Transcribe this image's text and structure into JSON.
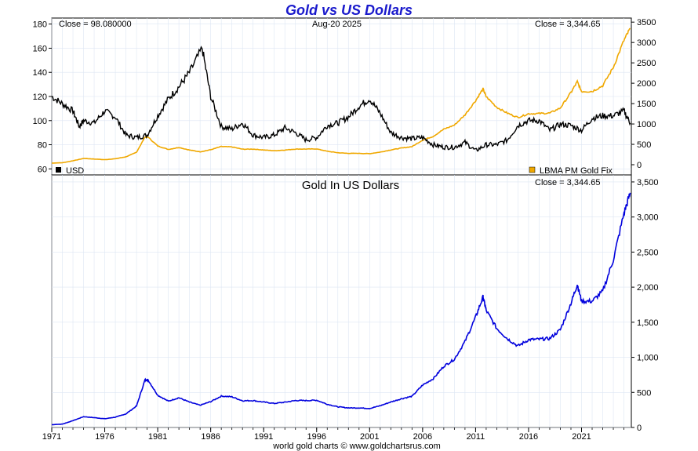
{
  "chart_data": [
    {
      "type": "line",
      "title": "Gold vs US Dollars",
      "date": "Aug-20  2025",
      "left_close": "Close = 98.080000",
      "right_close": "Close = 3,344.65",
      "legend_left": "USD",
      "legend_right": "LBMA PM Gold Fix",
      "colors": {
        "usd": "#000000",
        "gold": "#f0a800"
      },
      "left_axis": {
        "min": 55,
        "max": 185,
        "ticks": [
          "60",
          "80",
          "100",
          "120",
          "140",
          "160",
          "180"
        ]
      },
      "right_axis": {
        "min": -250,
        "max": 3600,
        "ticks": [
          "0",
          "500",
          "1000",
          "1500",
          "2000",
          "2500",
          "3000",
          "3500"
        ]
      },
      "x_range": [
        1971,
        2025.7
      ],
      "series": [
        {
          "name": "USD",
          "x": [
            1971,
            1972,
            1973,
            1973.6,
            1974,
            1975,
            1976,
            1977,
            1978,
            1979,
            1980,
            1981,
            1982,
            1983,
            1984,
            1985.2,
            1986,
            1987,
            1988,
            1989,
            1990,
            1991,
            1992,
            1993,
            1994,
            1995,
            1996,
            1997,
            1998,
            1999,
            2000,
            2001,
            2002,
            2003,
            2004,
            2005,
            2006,
            2007,
            2008,
            2009,
            2010,
            2011,
            2012,
            2013,
            2014,
            2015,
            2016,
            2017,
            2018,
            2019,
            2020,
            2021,
            2022,
            2023,
            2024,
            2025,
            2025.6
          ],
          "y": [
            120,
            114,
            108,
            95,
            100,
            98,
            108,
            103,
            88,
            86,
            88,
            104,
            118,
            128,
            140,
            160,
            120,
            95,
            93,
            98,
            88,
            86,
            88,
            94,
            90,
            84,
            86,
            96,
            98,
            103,
            112,
            118,
            106,
            90,
            86,
            85,
            86,
            80,
            78,
            78,
            82,
            75,
            80,
            80,
            84,
            96,
            100,
            100,
            92,
            97,
            96,
            92,
            102,
            104,
            104,
            108,
            98
          ]
        },
        {
          "name": "LBMA PM Gold Fix",
          "x": [
            1971,
            1972,
            1973,
            1974,
            1975,
            1976,
            1977,
            1978,
            1979,
            1979.8,
            1980.1,
            1981,
            1982,
            1983,
            1984,
            1985,
            1986,
            1987,
            1988,
            1989,
            1990,
            1991,
            1992,
            1993,
            1994,
            1995,
            1996,
            1997,
            1998,
            1999,
            2000,
            2001,
            2002,
            2003,
            2004,
            2005,
            2006,
            2007,
            2008,
            2009,
            2010,
            2011,
            2011.7,
            2012,
            2013,
            2014,
            2015,
            2016,
            2017,
            2018,
            2019,
            2020,
            2020.6,
            2021,
            2022,
            2023,
            2024,
            2025,
            2025.6
          ],
          "y": [
            40,
            48,
            97,
            154,
            140,
            124,
            147,
            193,
            306,
            680,
            675,
            460,
            375,
            424,
            361,
            317,
            368,
            447,
            437,
            381,
            383,
            362,
            343,
            360,
            384,
            384,
            388,
            331,
            294,
            279,
            279,
            271,
            310,
            363,
            409,
            444,
            604,
            695,
            872,
            972,
            1225,
            1572,
            1860,
            1669,
            1411,
            1266,
            1160,
            1251,
            1257,
            1268,
            1393,
            1770,
            2040,
            1800,
            1800,
            1940,
            2390,
            3050,
            3345
          ]
        }
      ]
    },
    {
      "type": "line",
      "title": "Gold In US Dollars",
      "right_close": "Close = 3,344.65",
      "color": "#0000dd",
      "y_axis": {
        "min": 0,
        "max": 3600,
        "ticks": [
          "0",
          "500",
          "1,000",
          "1,500",
          "2,000",
          "2,500",
          "3,000",
          "3,500"
        ]
      },
      "x_ticks": [
        "1971",
        "1976",
        "1981",
        "1986",
        "1991",
        "1996",
        "2001",
        "2006",
        "2011",
        "2016",
        "2021"
      ],
      "footer": "world gold charts © www.goldchartsrus.com",
      "series": [
        {
          "name": "Gold",
          "x": [
            1971,
            1972,
            1973,
            1974,
            1975,
            1976,
            1977,
            1978,
            1979,
            1979.8,
            1980.1,
            1981,
            1982,
            1983,
            1984,
            1985,
            1986,
            1987,
            1988,
            1989,
            1990,
            1991,
            1992,
            1993,
            1994,
            1995,
            1996,
            1997,
            1998,
            1999,
            2000,
            2001,
            2002,
            2003,
            2004,
            2005,
            2006,
            2007,
            2008,
            2009,
            2010,
            2011,
            2011.7,
            2012,
            2013,
            2014,
            2015,
            2016,
            2017,
            2018,
            2019,
            2020,
            2020.6,
            2021,
            2022,
            2023,
            2024,
            2025,
            2025.6
          ],
          "y": [
            40,
            48,
            97,
            154,
            140,
            124,
            147,
            193,
            306,
            680,
            675,
            460,
            375,
            424,
            361,
            317,
            368,
            447,
            437,
            381,
            383,
            362,
            343,
            360,
            384,
            384,
            388,
            331,
            294,
            279,
            279,
            271,
            310,
            363,
            409,
            444,
            604,
            695,
            872,
            972,
            1225,
            1572,
            1860,
            1669,
            1411,
            1266,
            1160,
            1251,
            1257,
            1268,
            1393,
            1770,
            2040,
            1800,
            1800,
            1940,
            2390,
            3050,
            3345
          ]
        }
      ]
    }
  ]
}
